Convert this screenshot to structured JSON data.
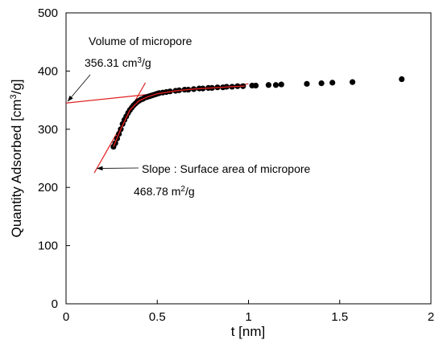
{
  "chart_data": {
    "type": "scatter",
    "title": "",
    "xlabel": "t [nm]",
    "ylabel_main": "Quantity Adsorbed [cm",
    "ylabel_sup": "3",
    "ylabel_tail": "/g]",
    "xlim": [
      0,
      2
    ],
    "ylim": [
      0,
      500
    ],
    "x_ticks": [
      0,
      0.5,
      1,
      1.5,
      2
    ],
    "x_tick_labels": [
      "0",
      "0.5",
      "1",
      "1.5",
      "2"
    ],
    "y_ticks": [
      0,
      100,
      200,
      300,
      400,
      500
    ],
    "y_tick_labels": [
      "0",
      "100",
      "200",
      "300",
      "400",
      "500"
    ],
    "grid": false,
    "series": [
      {
        "marker_color": "#000000",
        "x": [
          0.26,
          0.27,
          0.28,
          0.29,
          0.3,
          0.31,
          0.32,
          0.33,
          0.34,
          0.35,
          0.36,
          0.37,
          0.38,
          0.39,
          0.4,
          0.41,
          0.42,
          0.43,
          0.44,
          0.45,
          0.46,
          0.47,
          0.48,
          0.49,
          0.5,
          0.51,
          0.53,
          0.55,
          0.57,
          0.6,
          0.62,
          0.65,
          0.67,
          0.7,
          0.73,
          0.75,
          0.78,
          0.8,
          0.83,
          0.86,
          0.88,
          0.91,
          0.94,
          0.97,
          1.02,
          1.04,
          1.11,
          1.15,
          1.18,
          1.32,
          1.4,
          1.46,
          1.57,
          1.84
        ],
        "y": [
          270,
          276,
          284,
          292,
          300,
          309,
          316,
          322,
          328,
          333,
          337,
          341,
          344,
          347,
          349,
          351,
          352,
          354,
          355,
          356,
          357,
          358,
          359,
          360,
          361,
          362,
          363,
          364,
          365,
          366,
          367,
          368,
          368,
          369,
          370,
          370,
          371,
          371,
          372,
          372,
          373,
          373,
          374,
          374,
          375,
          375,
          376,
          376,
          377,
          378,
          379,
          380,
          381,
          386
        ]
      }
    ],
    "fit_lines": [
      {
        "color": "#e02020",
        "x1": 0,
        "y1": 345,
        "x2": 1.0,
        "y2": 378
      },
      {
        "color": "#e02020",
        "x1": 0.155,
        "y1": 225,
        "x2": 0.435,
        "y2": 380
      }
    ],
    "fit_curve": {
      "color": "#e02020",
      "x": [
        0.26,
        0.3,
        0.35,
        0.4,
        0.45,
        0.5,
        0.6,
        0.7,
        0.8,
        0.9,
        0.98
      ],
      "y": [
        270,
        300,
        333,
        349,
        356,
        361,
        366,
        369,
        371,
        373,
        374
      ]
    },
    "annotations": [
      {
        "lines": [
          "Volume of micropore"
        ],
        "value": "356.31 cm",
        "value_sup": "3",
        "value_tail": "/g",
        "arrow_to": [
          0,
          345
        ]
      },
      {
        "lines": [
          "Slope : Surface area of micropore"
        ],
        "value": "468.78 m",
        "value_sup": "2",
        "value_tail": "/g",
        "arrow_to": [
          0.16,
          230
        ]
      }
    ]
  }
}
